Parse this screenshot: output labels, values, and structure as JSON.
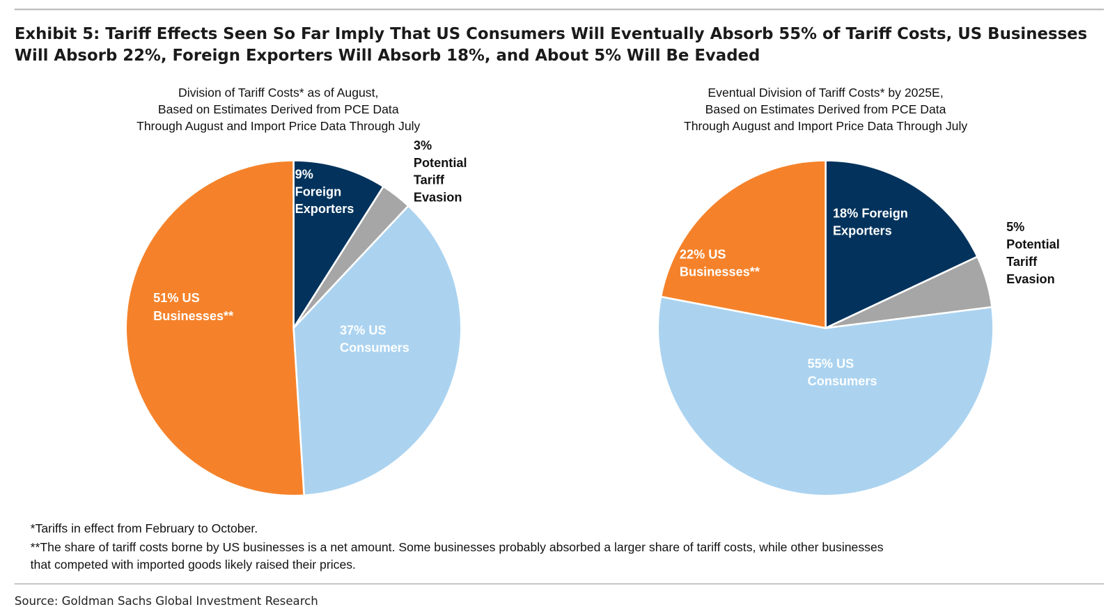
{
  "title": {
    "line1": "Exhibit 5: Tariff Effects Seen So Far Imply That US Consumers Will Eventually Absorb 55% of Tariff Costs, US Businesses",
    "line2": "Will Absorb 22%, Foreign Exporters Will Absorb 18%, and About 5% Will Be Evaded"
  },
  "chart_data": [
    {
      "type": "pie",
      "title": [
        "Division of Tariff Costs* as of August,",
        "Based on Estimates Derived from PCE Data",
        "Through August and Import Price Data Through July"
      ],
      "slices": [
        {
          "name": "Foreign Exporters",
          "value": 9,
          "color": "#03335c",
          "label": [
            "9%",
            "Foreign",
            "Exporters"
          ]
        },
        {
          "name": "Potential Tariff Evasion",
          "value": 3,
          "color": "#a6a6a6",
          "label": [
            "3%",
            "Potential",
            "Tariff",
            "Evasion"
          ]
        },
        {
          "name": "US Consumers",
          "value": 37,
          "color": "#abd3f0",
          "label": [
            "37% US",
            "Consumers"
          ]
        },
        {
          "name": "US Businesses**",
          "value": 51,
          "color": "#f5822a",
          "label": [
            "51% US",
            "Businesses**"
          ]
        }
      ]
    },
    {
      "type": "pie",
      "title": [
        "Eventual Division of Tariff Costs* by 2025E,",
        "Based on Estimates Derived from PCE Data",
        "Through August and Import Price Data Through July"
      ],
      "slices": [
        {
          "name": "Foreign Exporters",
          "value": 18,
          "color": "#03335c",
          "label": [
            "18% Foreign",
            "Exporters"
          ]
        },
        {
          "name": "Potential Tariff Evasion",
          "value": 5,
          "color": "#a6a6a6",
          "label": [
            "5%",
            "Potential",
            "Tariff",
            "Evasion"
          ]
        },
        {
          "name": "US Consumers",
          "value": 55,
          "color": "#abd3f0",
          "label": [
            "55% US",
            "Consumers"
          ]
        },
        {
          "name": "US Businesses**",
          "value": 22,
          "color": "#f5822a",
          "label": [
            "22% US",
            "Businesses**"
          ]
        }
      ]
    }
  ],
  "footnotes": [
    "*Tariffs in effect from February to October.",
    "**The share of tariff costs borne by US businesses is a net amount. Some businesses probably absorbed a larger share of tariff costs, while other businesses",
    "that competed with imported goods likely raised their prices."
  ],
  "source": "Source: Goldman Sachs Global Investment Research"
}
